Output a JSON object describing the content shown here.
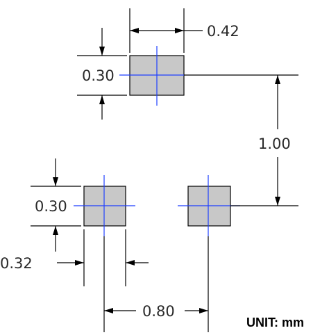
{
  "dimensions": {
    "pad_width": "0.42",
    "pad_height_top": "0.30",
    "vertical_pitch": "1.00",
    "pad_height_left": "0.30",
    "pad_width_left": "0.32",
    "horizontal_pitch": "0.80"
  },
  "unit_label": "UNIT: mm",
  "colors": {
    "pad_fill": "#c8c8c8",
    "center_line": "#1f3fff",
    "line": "#000000"
  }
}
